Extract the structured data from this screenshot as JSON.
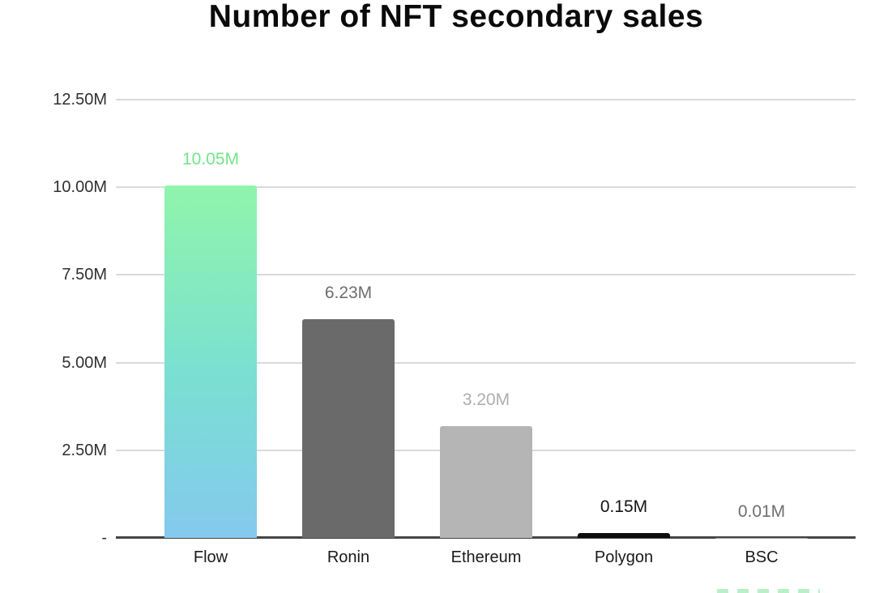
{
  "title": "Number of NFT secondary sales",
  "chart_data": {
    "type": "bar",
    "title": "Number of NFT secondary sales",
    "categories": [
      "Flow",
      "Ronin",
      "Ethereum",
      "Polygon",
      "BSC"
    ],
    "values": [
      10.05,
      6.23,
      3.2,
      0.15,
      0.01
    ],
    "value_labels": [
      "10.05M",
      "6.23M",
      "3.20M",
      "0.15M",
      "0.01M"
    ],
    "unit": "M",
    "ylim": [
      0,
      12.5
    ],
    "grid": true,
    "yticks": [
      {
        "value": 12.5,
        "label": "12.50M"
      },
      {
        "value": 10.0,
        "label": "10.00M"
      },
      {
        "value": 7.5,
        "label": "7.50M"
      },
      {
        "value": 5.0,
        "label": "5.00M"
      },
      {
        "value": 2.5,
        "label": "2.50M"
      },
      {
        "value": 0.0,
        "label": "-"
      }
    ],
    "bar_colors": [
      "gradient-green-blue",
      "#6a6a6a",
      "#b5b5b5",
      "#0d0d0d",
      "#9e9e9e"
    ],
    "flow_gradient": {
      "top": "#8ff5ab",
      "mid": "#7adfd2",
      "bottom": "#84c9ee"
    },
    "label_colors": [
      "#74e489",
      "#6e6e6e",
      "#aeaeae",
      "#141414",
      "#6f6f6f"
    ],
    "gridline_color": "#dadada",
    "baseline_color": "#454545"
  },
  "footer": {
    "partial_dashes_color": "#82e49c"
  }
}
